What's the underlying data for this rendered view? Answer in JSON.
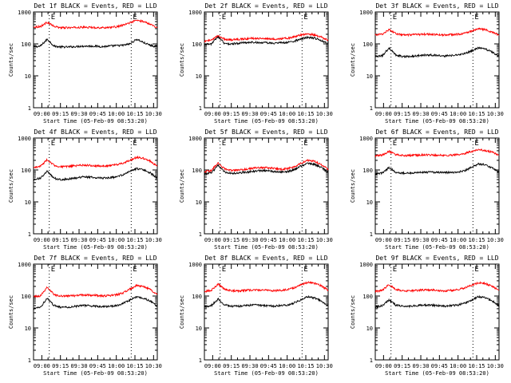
{
  "figure": {
    "background": "#ffffff",
    "axis_color": "#000000",
    "events_color": "#000000",
    "lld_color": "#ff0000"
  },
  "chart_data": [
    {
      "type": "line",
      "title": "Det 1f BLACK = Events, RED = LLD",
      "ylabel": "Counts/sec",
      "xlabel": "Start Time (05-Feb-09 08:53:20)",
      "yscale": "log",
      "ylim": [
        1,
        1000
      ],
      "yticks": [
        "1",
        "10",
        "100",
        "1000"
      ],
      "x_ticks": [
        "09:00",
        "09:15",
        "09:30",
        "09:45",
        "10:00",
        "10:15",
        "10:30"
      ],
      "markers": [
        "09:06",
        "10:12"
      ],
      "marker_labels": [
        "E",
        "E"
      ],
      "series": [
        {
          "color": "#000000",
          "values": [
            80,
            85,
            140,
            85,
            80,
            80,
            82,
            85,
            85,
            85,
            82,
            85,
            88,
            90,
            100,
            140,
            110,
            90,
            80
          ]
        },
        {
          "color": "#ff0000",
          "values": [
            340,
            350,
            480,
            350,
            320,
            320,
            325,
            330,
            330,
            325,
            320,
            330,
            340,
            380,
            460,
            550,
            500,
            420,
            320
          ]
        }
      ]
    },
    {
      "type": "line",
      "title": "Det 2f BLACK = Events, RED = LLD",
      "ylabel": "Counts/sec",
      "xlabel": "Start Time (05-Feb-09 08:53:20)",
      "yscale": "log",
      "ylim": [
        1,
        1000
      ],
      "yticks": [
        "1",
        "10",
        "100",
        "1000"
      ],
      "x_ticks": [
        "09:00",
        "09:15",
        "09:30",
        "09:45",
        "10:00",
        "10:15",
        "10:30"
      ],
      "markers": [
        "09:06",
        "10:12"
      ],
      "marker_labels": [
        "E",
        "E"
      ],
      "series": [
        {
          "color": "#000000",
          "values": [
            95,
            100,
            170,
            100,
            100,
            105,
            110,
            112,
            110,
            108,
            105,
            108,
            110,
            120,
            140,
            160,
            150,
            130,
            100
          ]
        },
        {
          "color": "#ff0000",
          "values": [
            120,
            130,
            180,
            140,
            135,
            140,
            145,
            150,
            150,
            145,
            140,
            145,
            150,
            165,
            190,
            210,
            190,
            165,
            130
          ]
        }
      ]
    },
    {
      "type": "line",
      "title": "Det 3f BLACK = Events, RED = LLD",
      "ylabel": "Counts/sec",
      "xlabel": "Start Time (05-Feb-09 08:53:20)",
      "yscale": "log",
      "ylim": [
        1,
        1000
      ],
      "yticks": [
        "1",
        "10",
        "100",
        "1000"
      ],
      "x_ticks": [
        "09:00",
        "09:15",
        "09:30",
        "09:45",
        "10:00",
        "10:15",
        "10:30"
      ],
      "markers": [
        "09:06",
        "10:12"
      ],
      "marker_labels": [
        "E",
        "E"
      ],
      "series": [
        {
          "color": "#000000",
          "values": [
            40,
            42,
            75,
            45,
            40,
            40,
            42,
            45,
            45,
            44,
            42,
            43,
            45,
            50,
            60,
            75,
            70,
            55,
            42
          ]
        },
        {
          "color": "#ff0000",
          "values": [
            190,
            200,
            280,
            210,
            190,
            190,
            195,
            200,
            200,
            195,
            190,
            195,
            200,
            215,
            250,
            300,
            280,
            230,
            190
          ]
        }
      ]
    },
    {
      "type": "line",
      "title": "Det 4f BLACK = Events, RED = LLD",
      "ylabel": "Counts/sec",
      "xlabel": "Start Time (05-Feb-09 08:53:20)",
      "yscale": "log",
      "ylim": [
        1,
        1000
      ],
      "yticks": [
        "1",
        "10",
        "100",
        "1000"
      ],
      "x_ticks": [
        "09:00",
        "09:15",
        "09:30",
        "09:45",
        "10:00",
        "10:15",
        "10:30"
      ],
      "markers": [
        "09:06",
        "10:12"
      ],
      "marker_labels": [
        "E",
        "E"
      ],
      "series": [
        {
          "color": "#000000",
          "values": [
            50,
            55,
            90,
            55,
            50,
            52,
            55,
            60,
            60,
            58,
            55,
            57,
            60,
            70,
            90,
            110,
            100,
            80,
            55
          ]
        },
        {
          "color": "#ff0000",
          "values": [
            120,
            130,
            210,
            140,
            125,
            128,
            135,
            140,
            140,
            135,
            130,
            135,
            145,
            165,
            200,
            250,
            230,
            190,
            130
          ]
        }
      ]
    },
    {
      "type": "line",
      "title": "Det 5f BLACK = Events, RED = LLD",
      "ylabel": "Counts/sec",
      "xlabel": "Start Time (05-Feb-09 08:53:20)",
      "yscale": "log",
      "ylim": [
        1,
        1000
      ],
      "yticks": [
        "1",
        "10",
        "100",
        "1000"
      ],
      "x_ticks": [
        "09:00",
        "09:15",
        "09:30",
        "09:45",
        "10:00",
        "10:15",
        "10:30"
      ],
      "markers": [
        "09:06",
        "10:12"
      ],
      "marker_labels": [
        "E",
        "E"
      ],
      "series": [
        {
          "color": "#000000",
          "values": [
            75,
            80,
            140,
            85,
            78,
            80,
            85,
            90,
            95,
            95,
            90,
            85,
            88,
            100,
            130,
            160,
            150,
            120,
            85
          ]
        },
        {
          "color": "#ff0000",
          "values": [
            90,
            95,
            170,
            105,
            95,
            98,
            105,
            112,
            118,
            118,
            112,
            105,
            108,
            125,
            160,
            200,
            185,
            150,
            105
          ]
        }
      ]
    },
    {
      "type": "line",
      "title": "Det 6f BLACK = Events, RED = LLD",
      "ylabel": "Counts/sec",
      "xlabel": "Start Time (05-Feb-09 08:53:20)",
      "yscale": "log",
      "ylim": [
        1,
        1000
      ],
      "yticks": [
        "1",
        "10",
        "100",
        "1000"
      ],
      "x_ticks": [
        "09:00",
        "09:15",
        "09:30",
        "09:45",
        "10:00",
        "10:15",
        "10:30"
      ],
      "markers": [
        "09:06",
        "10:12"
      ],
      "marker_labels": [
        "E",
        "E"
      ],
      "series": [
        {
          "color": "#000000",
          "values": [
            75,
            80,
            120,
            85,
            80,
            80,
            82,
            85,
            85,
            84,
            82,
            83,
            85,
            95,
            120,
            155,
            145,
            115,
            85
          ]
        },
        {
          "color": "#ff0000",
          "values": [
            280,
            290,
            380,
            300,
            285,
            285,
            290,
            295,
            295,
            290,
            285,
            290,
            300,
            330,
            380,
            430,
            410,
            360,
            290
          ]
        }
      ]
    },
    {
      "type": "line",
      "title": "Det 7f BLACK = Events, RED = LLD",
      "ylabel": "Counts/sec",
      "xlabel": "Start Time (05-Feb-09 08:53:20)",
      "yscale": "log",
      "ylim": [
        1,
        1000
      ],
      "yticks": [
        "1",
        "10",
        "100",
        "1000"
      ],
      "x_ticks": [
        "09:00",
        "09:15",
        "09:30",
        "09:45",
        "10:00",
        "10:15",
        "10:30"
      ],
      "markers": [
        "09:06",
        "10:12"
      ],
      "marker_labels": [
        "E",
        "E"
      ],
      "series": [
        {
          "color": "#000000",
          "values": [
            40,
            45,
            85,
            50,
            45,
            45,
            47,
            50,
            50,
            48,
            46,
            47,
            50,
            58,
            75,
            95,
            85,
            70,
            48
          ]
        },
        {
          "color": "#ff0000",
          "values": [
            95,
            100,
            190,
            110,
            100,
            100,
            103,
            108,
            108,
            105,
            100,
            103,
            108,
            125,
            165,
            215,
            195,
            160,
            110
          ]
        }
      ]
    },
    {
      "type": "line",
      "title": "Det 8f BLACK = Events, RED = LLD",
      "ylabel": "Counts/sec",
      "xlabel": "Start Time (05-Feb-09 08:53:20)",
      "yscale": "log",
      "ylim": [
        1,
        1000
      ],
      "yticks": [
        "1",
        "10",
        "100",
        "1000"
      ],
      "x_ticks": [
        "09:00",
        "09:15",
        "09:30",
        "09:45",
        "10:00",
        "10:15",
        "10:30"
      ],
      "markers": [
        "09:06",
        "10:12"
      ],
      "marker_labels": [
        "E",
        "E"
      ],
      "series": [
        {
          "color": "#000000",
          "values": [
            45,
            50,
            80,
            52,
            48,
            48,
            50,
            52,
            52,
            50,
            48,
            50,
            52,
            60,
            75,
            95,
            88,
            70,
            50
          ]
        },
        {
          "color": "#ff0000",
          "values": [
            140,
            150,
            240,
            160,
            145,
            145,
            150,
            155,
            155,
            150,
            145,
            150,
            158,
            180,
            220,
            270,
            250,
            210,
            150
          ]
        }
      ]
    },
    {
      "type": "line",
      "title": "Det 9f BLACK = Events, RED = LLD",
      "ylabel": "Counts/sec",
      "xlabel": "Start Time (05-Feb-09 08:53:20)",
      "yscale": "log",
      "ylim": [
        1,
        1000
      ],
      "yticks": [
        "1",
        "10",
        "100",
        "1000"
      ],
      "x_ticks": [
        "09:00",
        "09:15",
        "09:30",
        "09:45",
        "10:00",
        "10:15",
        "10:30"
      ],
      "markers": [
        "09:06",
        "10:12"
      ],
      "marker_labels": [
        "E",
        "E"
      ],
      "series": [
        {
          "color": "#000000",
          "values": [
            45,
            50,
            75,
            52,
            48,
            48,
            50,
            52,
            52,
            50,
            48,
            50,
            52,
            60,
            75,
            95,
            88,
            70,
            50
          ]
        },
        {
          "color": "#ff0000",
          "values": [
            140,
            150,
            230,
            160,
            145,
            145,
            150,
            155,
            155,
            150,
            145,
            150,
            158,
            180,
            215,
            265,
            245,
            205,
            150
          ]
        }
      ]
    }
  ]
}
